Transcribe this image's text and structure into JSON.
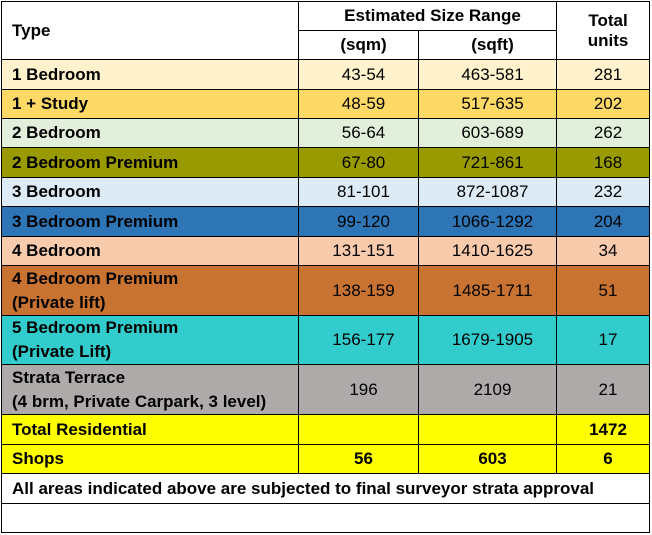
{
  "headers": {
    "type": "Type",
    "size_range": "Estimated Size Range",
    "total_units_line1": "Total",
    "total_units_line2": "units",
    "sqm": "(sqm)",
    "sqft": "(sqft)"
  },
  "colors": {
    "r0": "#fff2cc",
    "r1": "#ffd966",
    "r2": "#e2efda",
    "r3": "#999900",
    "r4": "#ddebf7",
    "r5": "#2e75b6",
    "r6": "#f8cbad",
    "r7": "#c87331",
    "r8": "#33cccc",
    "r9": "#aeaaaa",
    "total": "#ffff00"
  },
  "rows": [
    {
      "type": "1 Bedroom",
      "sqm": "43-54",
      "sqft": "463-581",
      "units": "281"
    },
    {
      "type": "1 + Study",
      "sqm": "48-59",
      "sqft": "517-635",
      "units": "202"
    },
    {
      "type": "2 Bedroom",
      "sqm": "56-64",
      "sqft": "603-689",
      "units": "262"
    },
    {
      "type": "2 Bedroom Premium",
      "sqm": "67-80",
      "sqft": "721-861",
      "units": "168"
    },
    {
      "type": "3 Bedroom",
      "sqm": "81-101",
      "sqft": "872-1087",
      "units": "232"
    },
    {
      "type": "3 Bedroom Premium",
      "sqm": "99-120",
      "sqft": "1066-1292",
      "units": "204"
    },
    {
      "type": "4 Bedroom",
      "sqm": "131-151",
      "sqft": "1410-1625",
      "units": "34"
    },
    {
      "type": "4 Bedroom Premium",
      "type2": "(Private lift)",
      "sqm": "138-159",
      "sqft": "1485-1711",
      "units": "51"
    },
    {
      "type": "5 Bedroom Premium",
      "type2": "(Private Lift)",
      "sqm": "156-177",
      "sqft": "1679-1905",
      "units": "17"
    },
    {
      "type": "Strata Terrace",
      "type2": "(4 brm, Private Carpark, 3 level)",
      "sqm": "196",
      "sqft": "2109",
      "units": "21"
    }
  ],
  "total_residential": {
    "label": "Total Residential",
    "units": "1472"
  },
  "shops": {
    "label": "Shops",
    "sqm": "56",
    "sqft": "603",
    "units": "6"
  },
  "note": "All areas indicated above are subjected to final surveyor strata approval"
}
